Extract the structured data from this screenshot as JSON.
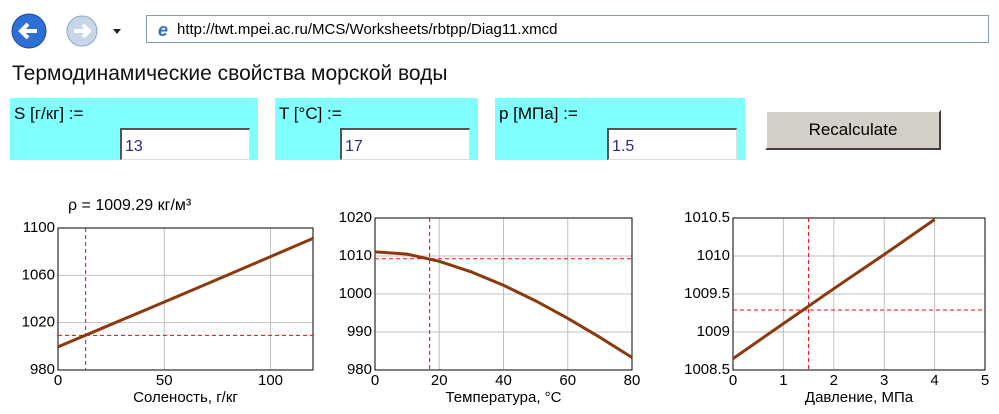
{
  "browser": {
    "url": "http://twt.mpei.ac.ru/MCS/Worksheets/rbtpp/Diag11.xmcd"
  },
  "page": {
    "title": "Термодинамические свойства морской воды"
  },
  "form": {
    "inputs": [
      {
        "label": "S [г/кг] :=",
        "value": "13"
      },
      {
        "label": "T [°C] :=",
        "value": "17"
      },
      {
        "label": "p [МПа] :=",
        "value": "1.5"
      }
    ],
    "button": "Recalculate"
  },
  "result": "ρ = 1009.29 кг/м³",
  "chart_data": [
    {
      "type": "line",
      "x_label": "Соленость, г/кг",
      "x": [
        0,
        20,
        40,
        60,
        80,
        100,
        120
      ],
      "values": [
        999.5,
        1014.7,
        1029.9,
        1045.1,
        1060.4,
        1075.8,
        1091.2
      ],
      "color": "#8b3a0f",
      "xlim": [
        0,
        120
      ],
      "ylim": [
        980,
        1100
      ],
      "xticks": [
        0,
        50,
        100
      ],
      "yticks": [
        980,
        1020,
        1060,
        1100
      ],
      "grid": true,
      "crosshair": {
        "x": 13,
        "y": 1009.29,
        "color": "#ff0000"
      }
    },
    {
      "type": "line",
      "x_label": "Температура, °C",
      "x": [
        0,
        10,
        20,
        30,
        40,
        50,
        60,
        70,
        80
      ],
      "values": [
        1011.1,
        1010.5,
        1008.6,
        1005.8,
        1002.3,
        998.2,
        993.6,
        988.6,
        983.3
      ],
      "color": "#8b3a0f",
      "xlim": [
        0,
        80
      ],
      "ylim": [
        980,
        1020
      ],
      "xticks": [
        0,
        20,
        40,
        60,
        80
      ],
      "yticks": [
        980,
        990,
        1000,
        1010,
        1020
      ],
      "grid": true,
      "crosshair": {
        "x": 17,
        "y": 1009.29,
        "color": "#ff0000"
      }
    },
    {
      "type": "line",
      "x_label": "Давление, МПа",
      "x": [
        0,
        1,
        2,
        3,
        4
      ],
      "values": [
        1008.65,
        1009.11,
        1009.57,
        1010.02,
        1010.48
      ],
      "color": "#8b3a0f",
      "xlim": [
        0,
        5
      ],
      "ylim": [
        1008.5,
        1010.5
      ],
      "xticks": [
        0,
        1,
        2,
        3,
        4,
        5
      ],
      "yticks": [
        1008.5,
        1009,
        1009.5,
        1010,
        1010.5
      ],
      "grid": true,
      "crosshair": {
        "x": 1.5,
        "y": 1009.29,
        "color": "#ff0000"
      }
    }
  ]
}
